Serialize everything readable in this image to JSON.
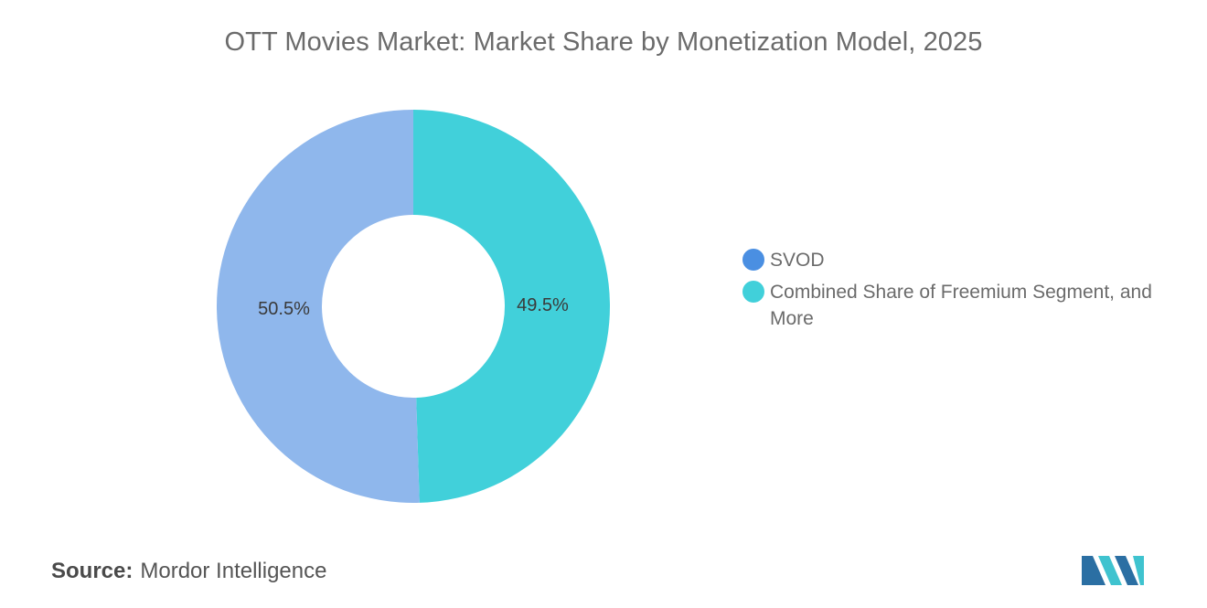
{
  "chart_data": {
    "type": "pie",
    "variant": "donut",
    "title": "OTT Movies Market: Market Share by Monetization Model, 2025",
    "slices": [
      {
        "name": "Combined Share of Freemium Segment, and More",
        "value": 49.5,
        "label": "49.5%",
        "color": "#41d0da"
      },
      {
        "name": "SVOD",
        "value": 50.5,
        "label": "50.5%",
        "color": "#8fb7ec"
      }
    ],
    "legend": {
      "placement": "right",
      "items": [
        {
          "label": "SVOD",
          "color": "#4a8fe2"
        },
        {
          "label": "Combined Share of Freemium Segment, and More",
          "color": "#41d0da"
        }
      ]
    }
  },
  "footer": {
    "source_prefix": "Source:",
    "source_name": "Mordor Intelligence"
  },
  "colors": {
    "title": "#6b6b6b",
    "logo_dark": "#2b6fa3",
    "logo_light": "#3fc3cf"
  }
}
